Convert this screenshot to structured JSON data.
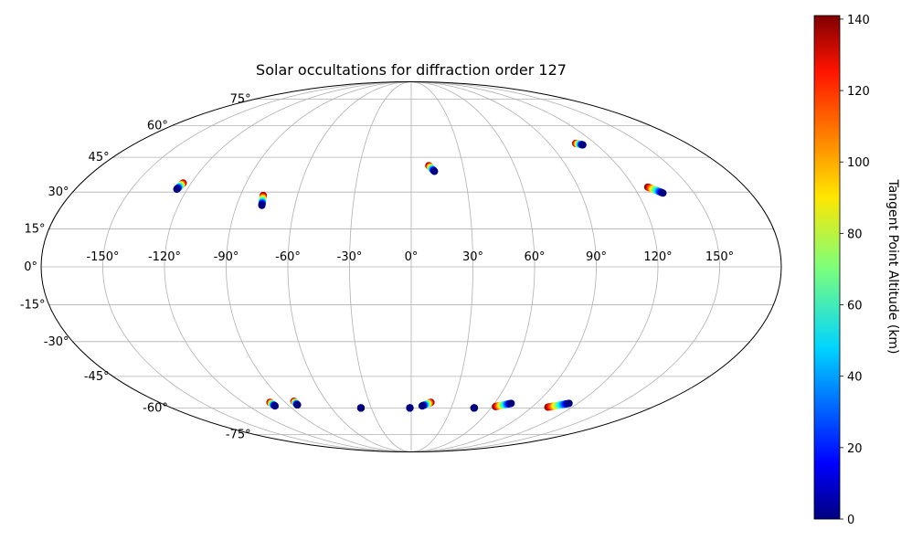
{
  "chart_data": {
    "type": "scatter",
    "projection": "mollweide",
    "title": "Solar occultations for diffraction order 127",
    "xlabel": "",
    "ylabel": "",
    "grid": true,
    "xticks": [
      -150,
      -120,
      -90,
      -60,
      -30,
      0,
      30,
      60,
      90,
      120,
      150
    ],
    "xtick_labels": [
      "-150°",
      "-120°",
      "-90°",
      "-60°",
      "-30°",
      "0°",
      "30°",
      "60°",
      "90°",
      "120°",
      "150°"
    ],
    "yticks": [
      -75,
      -60,
      -45,
      -30,
      -15,
      0,
      15,
      30,
      45,
      60,
      75
    ],
    "ytick_labels": [
      "-75°",
      "-60°",
      "-45°",
      "-30°",
      "-15°",
      "0°",
      "15°",
      "30°",
      "45°",
      "60°",
      "75°"
    ],
    "colorbar": {
      "label": "Tangent Point Altitude (km)",
      "colormap": "jet",
      "range": [
        0,
        141
      ],
      "ticks": [
        0,
        20,
        40,
        60,
        80,
        100,
        120,
        140
      ],
      "tick_labels": [
        "0",
        "20",
        "40",
        "60",
        "80",
        "100",
        "120",
        "140"
      ]
    },
    "tracks": [
      {
        "lon_start": -124.4,
        "lat_start": 33.8,
        "lon_end": -125.6,
        "lat_end": 31.2
      },
      {
        "lon_start": -78.0,
        "lat_start": 28.6,
        "lon_end": -77.0,
        "lat_end": 24.5
      },
      {
        "lon_start": 10.2,
        "lat_start": 41.3,
        "lon_end": 13.2,
        "lat_end": 38.8
      },
      {
        "lon_start": 107.4,
        "lat_start": 51.4,
        "lon_end": 111.0,
        "lat_end": 50.7
      },
      {
        "lon_start": 127.5,
        "lat_start": 32.1,
        "lon_end": 133.5,
        "lat_end": 29.6
      },
      {
        "lon_start": -100.9,
        "lat_start": -57.2,
        "lon_end": -100.4,
        "lat_end": -59.0
      },
      {
        "lon_start": -83.1,
        "lat_start": -56.7,
        "lon_end": -83.1,
        "lat_end": -58.5
      },
      {
        "lon_start": -37.8,
        "lat_start": -60.0,
        "lon_end": -37.8,
        "lat_end": -60.0
      },
      {
        "lon_start": -1.0,
        "lat_start": -60.0,
        "lon_end": -1.0,
        "lat_end": -60.0
      },
      {
        "lon_start": 14.1,
        "lat_start": -57.2,
        "lon_end": 8.0,
        "lat_end": -59.0
      },
      {
        "lon_start": 47.3,
        "lat_start": -60.0,
        "lon_end": 47.3,
        "lat_end": -60.0
      },
      {
        "lon_start": 62.5,
        "lat_start": -59.3,
        "lon_end": 72.0,
        "lat_end": -57.7
      },
      {
        "lon_start": 101.9,
        "lat_start": -59.6,
        "lon_end": 113.7,
        "lat_end": -57.7
      }
    ]
  }
}
